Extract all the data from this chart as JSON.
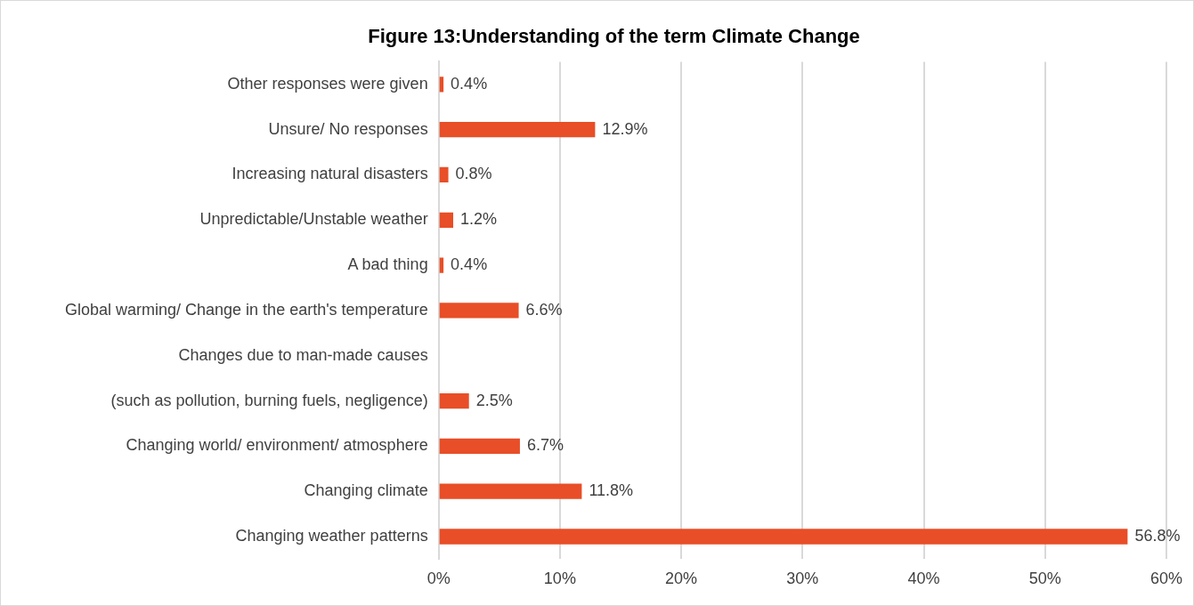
{
  "chart_data": {
    "type": "bar",
    "orientation": "horizontal",
    "title": "Figure 13:Understanding of the term Climate Change",
    "categories": [
      "Other responses were given",
      "Unsure/ No responses",
      "Increasing natural disasters",
      "Unpredictable/Unstable weather",
      "A bad thing",
      "Global warming/ Change in the earth's temperature",
      "Changes due to man-made causes",
      "(such as pollution, burning fuels, negligence)",
      "Changing world/ environment/ atmosphere",
      "Changing climate",
      "Changing weather patterns"
    ],
    "values": [
      0.4,
      12.9,
      0.8,
      1.2,
      0.4,
      6.6,
      null,
      2.5,
      6.7,
      11.8,
      56.8
    ],
    "value_labels": [
      "0.4%",
      "12.9%",
      "0.8%",
      "1.2%",
      "0.4%",
      "6.6%",
      null,
      "2.5%",
      "6.7%",
      "11.8%",
      "56.8%"
    ],
    "color": "#e84e27",
    "xlim": [
      0,
      60
    ],
    "xticks": [
      {
        "value": 0,
        "label": "0%"
      },
      {
        "value": 10,
        "label": "10%"
      },
      {
        "value": 20,
        "label": "20%"
      },
      {
        "value": 30,
        "label": "30%"
      },
      {
        "value": 40,
        "label": "40%"
      },
      {
        "value": 50,
        "label": "50%"
      },
      {
        "value": 60,
        "label": "60%"
      }
    ],
    "grid": "x",
    "legend": false
  }
}
